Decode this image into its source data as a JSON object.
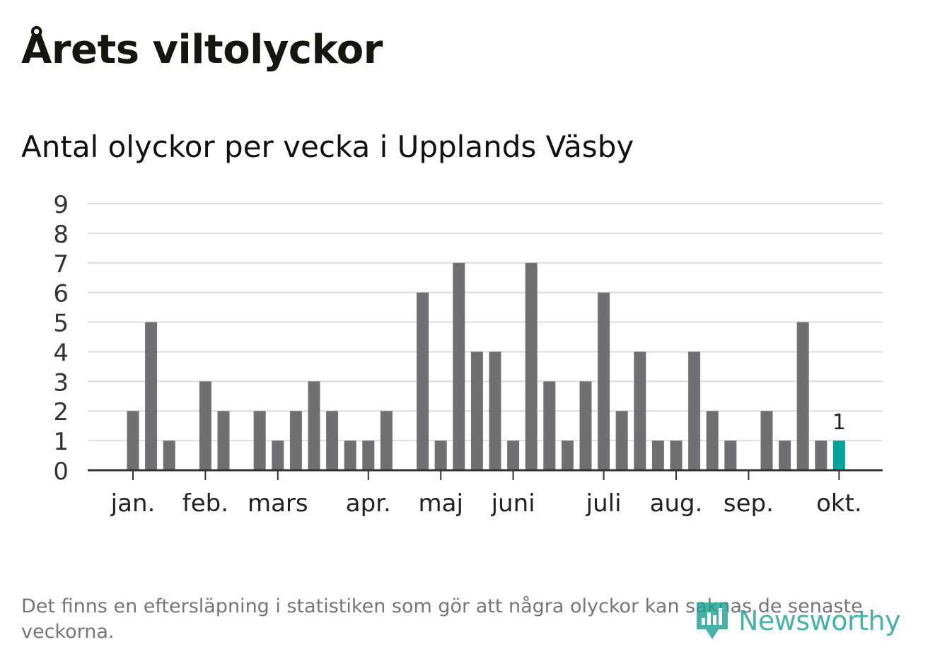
{
  "title": "Årets viltolyckor",
  "footnote": "Det finns en eftersläpning i statistiken som gör att några olyckor kan saknas de senaste veckorna.",
  "logo": {
    "text": "Newsworthy",
    "icon": "newsworthy-logo-icon"
  },
  "colors": {
    "bar": "#707073",
    "highlight": "#00a39a",
    "grid": "#dcdcdc",
    "axis": "#333333",
    "logo": "#1fa293"
  },
  "chart_data": {
    "type": "bar",
    "title": "Antal olyckor per vecka i Upplands Väsby",
    "xlabel": "",
    "ylabel": "",
    "ylim": [
      0,
      9
    ],
    "yticks": [
      "0",
      "1",
      "2",
      "3",
      "4",
      "5",
      "6",
      "7",
      "8",
      "9"
    ],
    "grid": true,
    "week_slots": 42,
    "values": [
      2,
      5,
      1,
      null,
      3,
      2,
      null,
      2,
      1,
      2,
      3,
      2,
      1,
      1,
      2,
      null,
      6,
      1,
      7,
      4,
      4,
      1,
      7,
      3,
      1,
      3,
      6,
      2,
      4,
      1,
      1,
      4,
      2,
      1,
      null,
      2,
      1,
      5,
      1,
      1
    ],
    "highlight_index": 39,
    "highlight_label": "1",
    "month_ticks": [
      {
        "label": "jan.",
        "week": 0.5
      },
      {
        "label": "feb.",
        "week": 4.5
      },
      {
        "label": "mars",
        "week": 8.5
      },
      {
        "label": "apr.",
        "week": 13.5
      },
      {
        "label": "maj",
        "week": 17.5
      },
      {
        "label": "juni",
        "week": 21.5
      },
      {
        "label": "juli",
        "week": 26.5
      },
      {
        "label": "aug.",
        "week": 30.5
      },
      {
        "label": "sep.",
        "week": 34.5
      },
      {
        "label": "okt.",
        "week": 39.5
      }
    ]
  }
}
